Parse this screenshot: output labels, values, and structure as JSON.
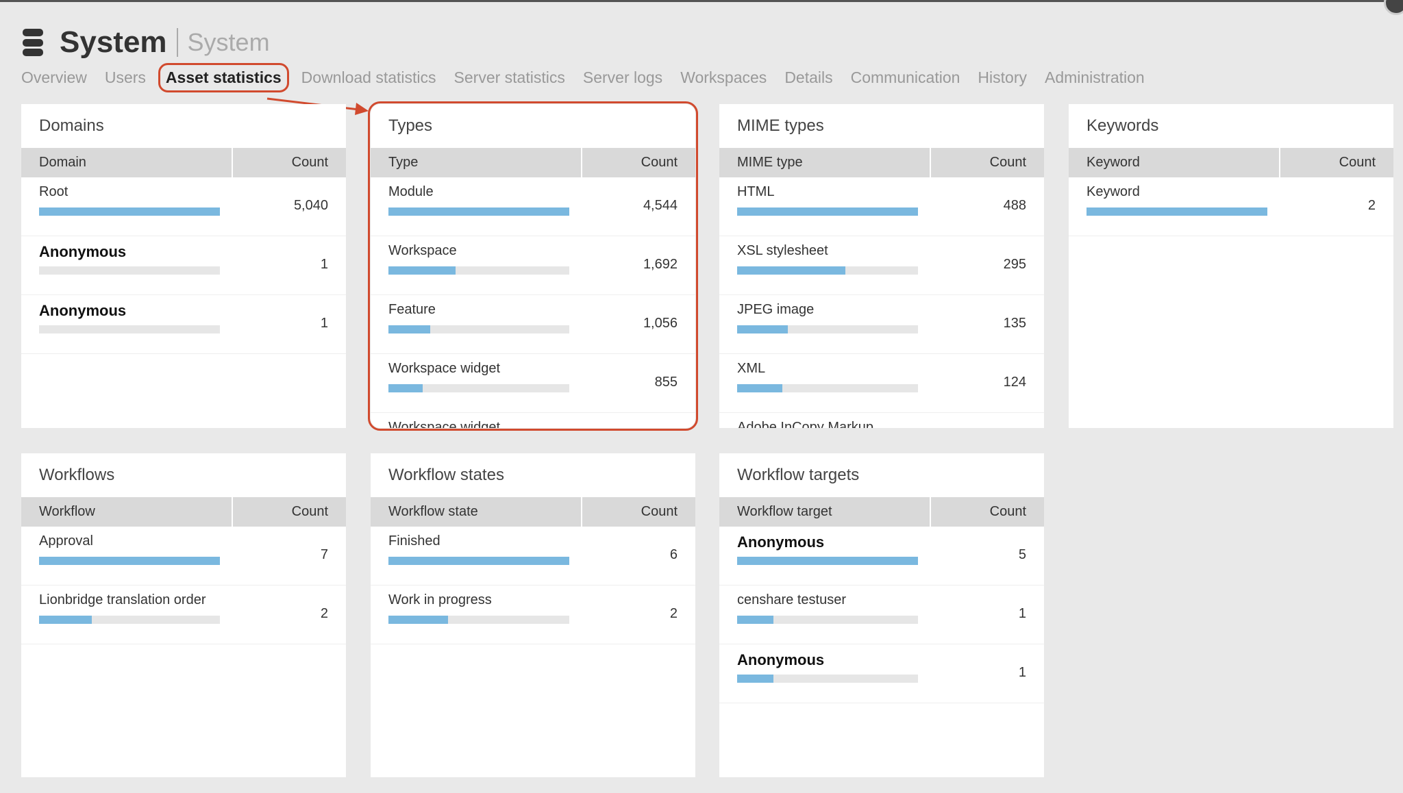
{
  "header": {
    "title": "System",
    "subtitle": "System"
  },
  "tabs": [
    "Overview",
    "Users",
    "Asset statistics",
    "Download statistics",
    "Server statistics",
    "Server logs",
    "Workspaces",
    "Details",
    "Communication",
    "History",
    "Administration"
  ],
  "active_tab": "Asset statistics",
  "colors": {
    "bar_fill": "#7ab8df",
    "bar_track": "#e6e6e6",
    "highlight": "#d14a2e"
  },
  "panels": {
    "domains": {
      "title": "Domains",
      "col1": "Domain",
      "col2": "Count",
      "rows": [
        {
          "label": "Root",
          "count": "5,040",
          "fill": 1.0
        },
        {
          "label": "Anonymous",
          "count": "1",
          "fill": 0.0,
          "anon": true
        },
        {
          "label": "Anonymous",
          "count": "1",
          "fill": 0.0,
          "anon": true
        }
      ]
    },
    "types": {
      "title": "Types",
      "col1": "Type",
      "col2": "Count",
      "rows": [
        {
          "label": "Module",
          "count": "4,544",
          "fill": 1.0
        },
        {
          "label": "Workspace",
          "count": "1,692",
          "fill": 0.37
        },
        {
          "label": "Feature",
          "count": "1,056",
          "fill": 0.23
        },
        {
          "label": "Workspace widget",
          "count": "855",
          "fill": 0.19
        },
        {
          "label": "Workspace widget",
          "count": "",
          "fill": 0.15
        }
      ]
    },
    "mime": {
      "title": "MIME types",
      "col1": "MIME type",
      "col2": "Count",
      "rows": [
        {
          "label": "HTML",
          "count": "488",
          "fill": 1.0
        },
        {
          "label": "XSL stylesheet",
          "count": "295",
          "fill": 0.6
        },
        {
          "label": "JPEG image",
          "count": "135",
          "fill": 0.28
        },
        {
          "label": "XML",
          "count": "124",
          "fill": 0.25
        },
        {
          "label": "Adobe InCopy Markup",
          "count": "",
          "fill": 0.2
        }
      ]
    },
    "keywords": {
      "title": "Keywords",
      "col1": "Keyword",
      "col2": "Count",
      "rows": [
        {
          "label": "Keyword",
          "count": "2",
          "fill": 1.0
        }
      ]
    },
    "workflows": {
      "title": "Workflows",
      "col1": "Workflow",
      "col2": "Count",
      "rows": [
        {
          "label": "Approval",
          "count": "7",
          "fill": 1.0
        },
        {
          "label": "Lionbridge translation order",
          "count": "2",
          "fill": 0.29
        }
      ]
    },
    "wstates": {
      "title": "Workflow states",
      "col1": "Workflow state",
      "col2": "Count",
      "rows": [
        {
          "label": "Finished",
          "count": "6",
          "fill": 1.0
        },
        {
          "label": "Work in progress",
          "count": "2",
          "fill": 0.33
        }
      ]
    },
    "wtargets": {
      "title": "Workflow targets",
      "col1": "Workflow target",
      "col2": "Count",
      "rows": [
        {
          "label": "Anonymous",
          "count": "5",
          "fill": 1.0,
          "anon": true
        },
        {
          "label": "censhare testuser",
          "count": "1",
          "fill": 0.2
        },
        {
          "label": "Anonymous",
          "count": "1",
          "fill": 0.2,
          "anon": true
        }
      ]
    }
  }
}
